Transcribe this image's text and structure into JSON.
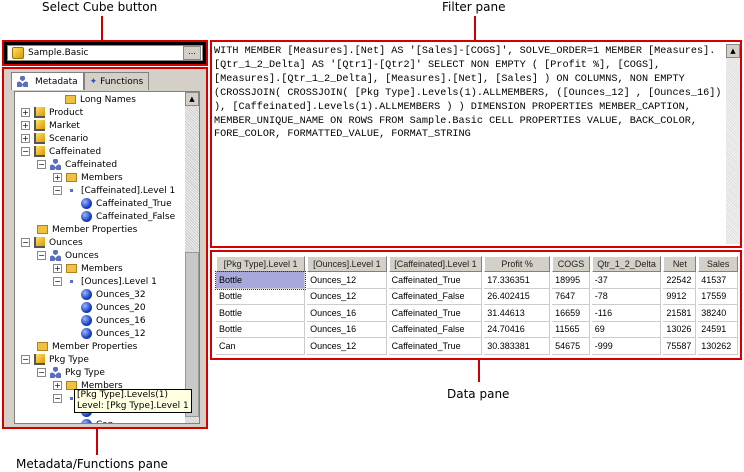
{
  "callouts": {
    "select_cube": "Select Cube button",
    "filter_pane": "Filter pane",
    "data_pane": "Data pane",
    "metadata_pane": "Metadata/Functions pane"
  },
  "cube_selector": {
    "value": "Sample.Basic",
    "browse_label": "..."
  },
  "tabs": [
    {
      "label": "Metadata",
      "active": true
    },
    {
      "label": "Functions",
      "active": false
    }
  ],
  "tree": [
    {
      "label": "Long Names",
      "icon": "long-names-icon",
      "level": 2
    },
    {
      "label": "Product",
      "icon": "dimension-icon",
      "level": 0,
      "expander": "+"
    },
    {
      "label": "Market",
      "icon": "dimension-icon",
      "level": 0,
      "expander": "+"
    },
    {
      "label": "Scenario",
      "icon": "dimension-icon",
      "level": 0,
      "expander": "+"
    },
    {
      "label": "Caffeinated",
      "icon": "dimension-icon",
      "level": 0,
      "expander": "-"
    },
    {
      "label": "Caffeinated",
      "icon": "hierarchy-icon",
      "level": 1,
      "expander": "-"
    },
    {
      "label": "Members",
      "icon": "members-folder-icon",
      "level": 2,
      "expander": "+"
    },
    {
      "label": "[Caffeinated].Level 1",
      "icon": "level-icon",
      "level": 2,
      "expander": "-"
    },
    {
      "label": "Caffeinated_True",
      "icon": "member-icon",
      "level": 3
    },
    {
      "label": "Caffeinated_False",
      "icon": "member-icon",
      "level": 3
    },
    {
      "label": "Member Properties",
      "icon": "folder-icon",
      "level": 1
    },
    {
      "label": "Ounces",
      "icon": "dimension-icon",
      "level": 0,
      "expander": "-"
    },
    {
      "label": "Ounces",
      "icon": "hierarchy-icon",
      "level": 1,
      "expander": "-"
    },
    {
      "label": "Members",
      "icon": "members-folder-icon",
      "level": 2,
      "expander": "+"
    },
    {
      "label": "[Ounces].Level 1",
      "icon": "level-icon",
      "level": 2,
      "expander": "-"
    },
    {
      "label": "Ounces_32",
      "icon": "member-icon",
      "level": 3
    },
    {
      "label": "Ounces_20",
      "icon": "member-icon",
      "level": 3
    },
    {
      "label": "Ounces_16",
      "icon": "member-icon",
      "level": 3
    },
    {
      "label": "Ounces_12",
      "icon": "member-icon",
      "level": 3
    },
    {
      "label": "Member Properties",
      "icon": "folder-icon",
      "level": 1
    },
    {
      "label": "Pkg Type",
      "icon": "dimension-icon",
      "level": 0,
      "expander": "-"
    },
    {
      "label": "Pkg Type",
      "icon": "hierarchy-icon",
      "level": 1,
      "expander": "-"
    },
    {
      "label": "Members",
      "icon": "members-folder-icon",
      "level": 2,
      "expander": "+"
    },
    {
      "label": "",
      "icon": "level-icon",
      "level": 2,
      "expander": "-"
    },
    {
      "label": "",
      "icon": "member-icon",
      "level": 3
    },
    {
      "label": "Can",
      "icon": "member-icon",
      "level": 3
    }
  ],
  "tooltip": {
    "line1": "[Pkg Type].Levels(1)",
    "line2": "Level: [Pkg Type].Level 1"
  },
  "filter": {
    "query": "WITH MEMBER [Measures].[Net] AS '[Sales]-[COGS]', SOLVE_ORDER=1 MEMBER [Measures].[Qtr_1_2_Delta] AS '[Qtr1]-[Qtr2]' SELECT NON EMPTY ( [Profit %], [COGS], [Measures].[Qtr_1_2_Delta], [Measures].[Net], [Sales] ) ON COLUMNS, NON EMPTY (CROSSJOIN( CROSSJOIN( [Pkg Type].Levels(1).ALLMEMBERS, ([Ounces_12] , [Ounces_16]) ), [Caffeinated].Levels(1).ALLMEMBERS ) ) DIMENSION PROPERTIES MEMBER_CAPTION, MEMBER_UNIQUE_NAME ON ROWS FROM Sample.Basic CELL PROPERTIES VALUE, BACK_COLOR, FORE_COLOR, FORMATTED_VALUE, FORMAT_STRING"
  },
  "grid": {
    "columns": [
      "[Pkg Type].Level 1",
      "[Ounces].Level 1",
      "[Caffeinated].Level 1",
      "Profit %",
      "COGS",
      "Qtr_1_2_Delta",
      "Net",
      "Sales"
    ],
    "rows": [
      [
        "Bottle",
        "Ounces_12",
        "Caffeinated_True",
        "17.336351",
        "18995",
        "-37",
        "22542",
        "41537"
      ],
      [
        "Bottle",
        "Ounces_12",
        "Caffeinated_False",
        "26.402415",
        "7647",
        "-78",
        "9912",
        "17559"
      ],
      [
        "Bottle",
        "Ounces_16",
        "Caffeinated_True",
        "31.44613",
        "16659",
        "-116",
        "21581",
        "38240"
      ],
      [
        "Bottle",
        "Ounces_16",
        "Caffeinated_False",
        "24.70416",
        "11565",
        "69",
        "13026",
        "24591"
      ],
      [
        "Can",
        "Ounces_12",
        "Caffeinated_True",
        "30.383381",
        "54675",
        "-999",
        "75587",
        "130262"
      ]
    ]
  },
  "colors": {
    "callout_red": "#d40000",
    "selected_cell": "#a8a8dc"
  }
}
